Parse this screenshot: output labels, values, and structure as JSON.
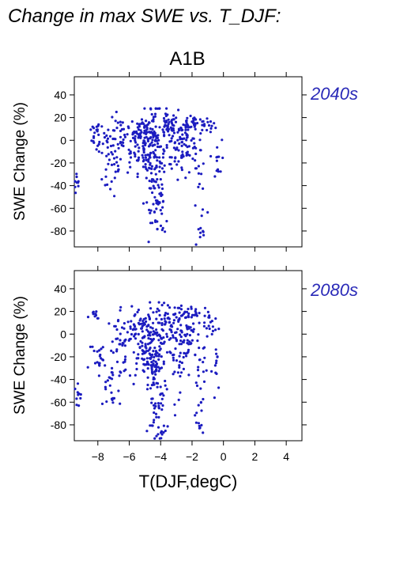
{
  "header": {
    "title": "Change in max SWE vs. T_DJF:"
  },
  "scenario": "A1B",
  "colors": {
    "points": "#1c1cc0",
    "period_label": "#2a2ab8",
    "axes": "#000000"
  },
  "chart_data": [
    {
      "type": "scatter",
      "period": "2040s",
      "ylabel": "SWE Change (%)",
      "xlabel": "",
      "xlim": [
        -9.5,
        5
      ],
      "ylim": [
        -94,
        56
      ],
      "yticks": [
        40,
        20,
        0,
        -20,
        -40,
        -60,
        -80
      ],
      "clusters": [
        {
          "cx": -9.3,
          "cy": -38,
          "sx": 0.15,
          "sy": 6,
          "n": 10
        },
        {
          "cx": -8.2,
          "cy": 10,
          "sx": 0.2,
          "sy": 3,
          "n": 10
        },
        {
          "cx": -7.6,
          "cy": 0,
          "sx": 0.4,
          "sy": 6,
          "n": 25
        },
        {
          "cx": -7.2,
          "cy": -25,
          "sx": 0.35,
          "sy": 12,
          "n": 22
        },
        {
          "cx": -6.5,
          "cy": -10,
          "sx": 0.5,
          "sy": 14,
          "n": 35
        },
        {
          "cx": -5.8,
          "cy": 8,
          "sx": 0.4,
          "sy": 7,
          "n": 30
        },
        {
          "cx": -5.0,
          "cy": 0,
          "sx": 0.45,
          "sy": 14,
          "n": 90
        },
        {
          "cx": -4.4,
          "cy": -15,
          "sx": 0.35,
          "sy": 22,
          "n": 110
        },
        {
          "cx": -4.2,
          "cy": -55,
          "sx": 0.3,
          "sy": 15,
          "n": 25
        },
        {
          "cx": -3.9,
          "cy": -78,
          "sx": 0.15,
          "sy": 5,
          "n": 6
        },
        {
          "cx": -3.5,
          "cy": 12,
          "sx": 0.3,
          "sy": 5,
          "n": 40
        },
        {
          "cx": -3.0,
          "cy": -10,
          "sx": 0.4,
          "sy": 15,
          "n": 45
        },
        {
          "cx": -2.3,
          "cy": 0,
          "sx": 0.35,
          "sy": 9,
          "n": 45
        },
        {
          "cx": -2.0,
          "cy": 15,
          "sx": 0.5,
          "sy": 3,
          "n": 25
        },
        {
          "cx": -1.6,
          "cy": -30,
          "sx": 0.25,
          "sy": 20,
          "n": 25
        },
        {
          "cx": -1.4,
          "cy": -82,
          "sx": 0.1,
          "sy": 3,
          "n": 6
        },
        {
          "cx": -1.0,
          "cy": 14,
          "sx": 0.3,
          "sy": 3,
          "n": 15
        },
        {
          "cx": -0.4,
          "cy": -20,
          "sx": 0.15,
          "sy": 10,
          "n": 12
        }
      ]
    },
    {
      "type": "scatter",
      "period": "2080s",
      "ylabel": "SWE Change (%)",
      "xlabel": "T(DJF,degC)",
      "xlim": [
        -9.5,
        5
      ],
      "ylim": [
        -94,
        56
      ],
      "yticks": [
        40,
        20,
        0,
        -20,
        -40,
        -60,
        -80
      ],
      "xticks": [
        -8,
        -6,
        -4,
        -2,
        0,
        2,
        4
      ],
      "clusters": [
        {
          "cx": -9.3,
          "cy": -55,
          "sx": 0.15,
          "sy": 7,
          "n": 10
        },
        {
          "cx": -8.2,
          "cy": 15,
          "sx": 0.2,
          "sy": 3,
          "n": 10
        },
        {
          "cx": -7.8,
          "cy": -25,
          "sx": 0.4,
          "sy": 12,
          "n": 25
        },
        {
          "cx": -7.2,
          "cy": -50,
          "sx": 0.3,
          "sy": 12,
          "n": 15
        },
        {
          "cx": -6.5,
          "cy": -10,
          "sx": 0.5,
          "sy": 18,
          "n": 40
        },
        {
          "cx": -5.7,
          "cy": 5,
          "sx": 0.4,
          "sy": 8,
          "n": 30
        },
        {
          "cx": -5.0,
          "cy": -10,
          "sx": 0.5,
          "sy": 18,
          "n": 90
        },
        {
          "cx": -4.4,
          "cy": -25,
          "sx": 0.35,
          "sy": 25,
          "n": 110
        },
        {
          "cx": -4.2,
          "cy": -70,
          "sx": 0.3,
          "sy": 12,
          "n": 25
        },
        {
          "cx": -4.0,
          "cy": -90,
          "sx": 0.15,
          "sy": 3,
          "n": 6
        },
        {
          "cx": -3.5,
          "cy": 10,
          "sx": 0.4,
          "sy": 8,
          "n": 45
        },
        {
          "cx": -2.9,
          "cy": -15,
          "sx": 0.4,
          "sy": 18,
          "n": 45
        },
        {
          "cx": -2.2,
          "cy": 0,
          "sx": 0.35,
          "sy": 12,
          "n": 45
        },
        {
          "cx": -1.8,
          "cy": 18,
          "sx": 0.5,
          "sy": 4,
          "n": 25
        },
        {
          "cx": -1.5,
          "cy": -40,
          "sx": 0.25,
          "sy": 18,
          "n": 25
        },
        {
          "cx": -1.4,
          "cy": -82,
          "sx": 0.1,
          "sy": 3,
          "n": 6
        },
        {
          "cx": -0.9,
          "cy": 5,
          "sx": 0.3,
          "sy": 6,
          "n": 15
        },
        {
          "cx": -0.4,
          "cy": -30,
          "sx": 0.15,
          "sy": 12,
          "n": 12
        }
      ]
    }
  ]
}
